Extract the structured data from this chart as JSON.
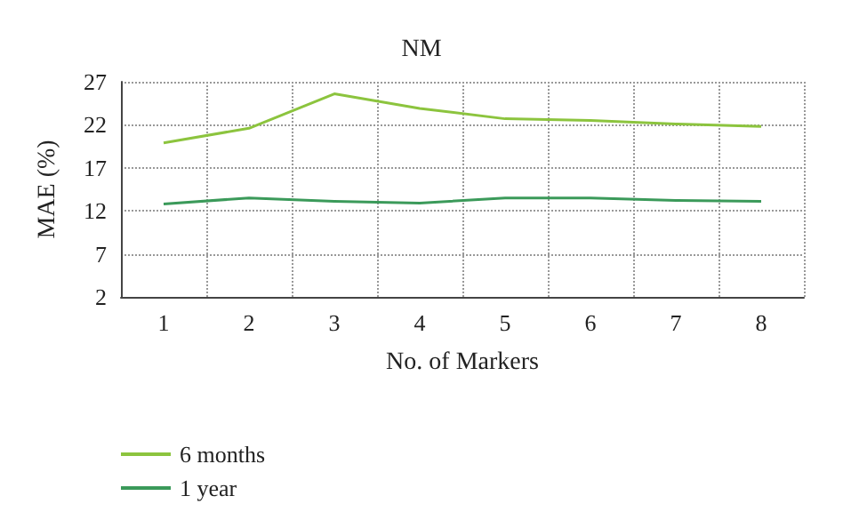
{
  "chart_data": {
    "type": "line",
    "title": "NM",
    "xlabel": "No. of Markers",
    "ylabel": "MAE (%)",
    "categories": [
      "1",
      "2",
      "3",
      "4",
      "5",
      "6",
      "7",
      "8"
    ],
    "series": [
      {
        "name": "6 months",
        "color": "#8cc43e",
        "values": [
          19.9,
          21.6,
          25.6,
          23.9,
          22.7,
          22.5,
          22.1,
          21.8
        ]
      },
      {
        "name": "1 year",
        "color": "#3b9a5a",
        "values": [
          12.8,
          13.5,
          13.1,
          12.9,
          13.5,
          13.5,
          13.2,
          13.1
        ]
      }
    ],
    "ylim": [
      2,
      27
    ],
    "yticks": [
      2,
      7,
      12,
      17,
      22,
      27
    ],
    "grid": true,
    "legend": "bottom left",
    "marker": "none",
    "line_style": "solid"
  }
}
